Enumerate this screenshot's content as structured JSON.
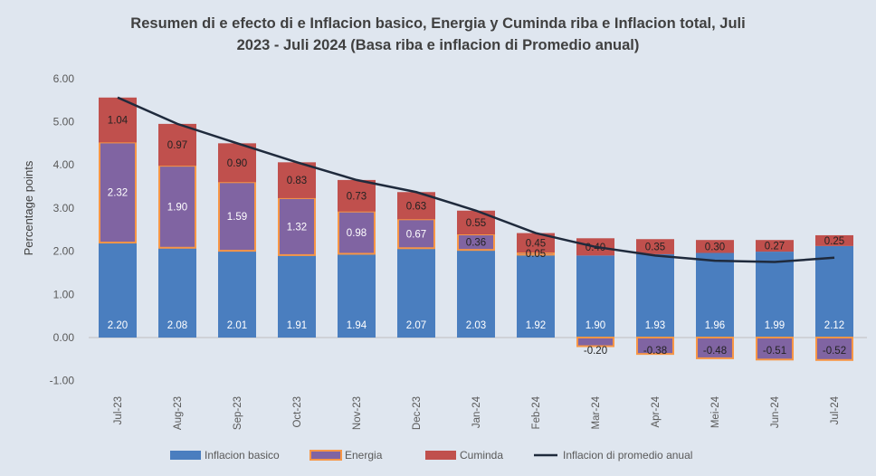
{
  "chart_data": {
    "type": "bar",
    "stacked": true,
    "title_line1": "Resumen di e efecto di e Inflacion basico, Energia y Cuminda riba e Inflacion total, Juli",
    "title_line2": "2023 - Juli 2024 (Basa riba e inflacion di Promedio anual)",
    "ylabel": "Percentage points",
    "xlabel": "",
    "ylim": [
      -1,
      6
    ],
    "yticks": [
      "-1.00",
      "0.00",
      "1.00",
      "2.00",
      "3.00",
      "4.00",
      "5.00",
      "6.00"
    ],
    "grid": false,
    "legend": "bottom",
    "categories": [
      "Jul-23",
      "Aug-23",
      "Sep-23",
      "Oct-23",
      "Nov-23",
      "Dec-23",
      "Jan-24",
      "Feb-24",
      "Mar-24",
      "Apr-24",
      "Mei-24",
      "Jun-24",
      "Jul-24"
    ],
    "series": [
      {
        "name": "Inflacion basico",
        "type": "bar",
        "color": "#4a7ebf",
        "values": [
          2.2,
          2.08,
          2.01,
          1.91,
          1.94,
          2.07,
          2.03,
          1.92,
          1.9,
          1.93,
          1.96,
          1.99,
          2.12
        ]
      },
      {
        "name": "Energia",
        "type": "bar",
        "color": "#8064a2",
        "border": "#f79646",
        "values": [
          2.32,
          1.9,
          1.59,
          1.32,
          0.98,
          0.67,
          0.36,
          0.05,
          -0.2,
          -0.38,
          -0.48,
          -0.51,
          -0.52
        ]
      },
      {
        "name": "Cuminda",
        "type": "bar",
        "color": "#c0504d",
        "values": [
          1.04,
          0.97,
          0.9,
          0.83,
          0.73,
          0.63,
          0.55,
          0.45,
          0.4,
          0.35,
          0.3,
          0.27,
          0.25
        ]
      },
      {
        "name": "Inflacion di promedio anual",
        "type": "line",
        "color": "#1f2a3c",
        "values": [
          5.56,
          4.95,
          4.5,
          4.06,
          3.65,
          3.37,
          2.94,
          2.42,
          2.1,
          1.9,
          1.78,
          1.75,
          1.85
        ]
      }
    ]
  }
}
